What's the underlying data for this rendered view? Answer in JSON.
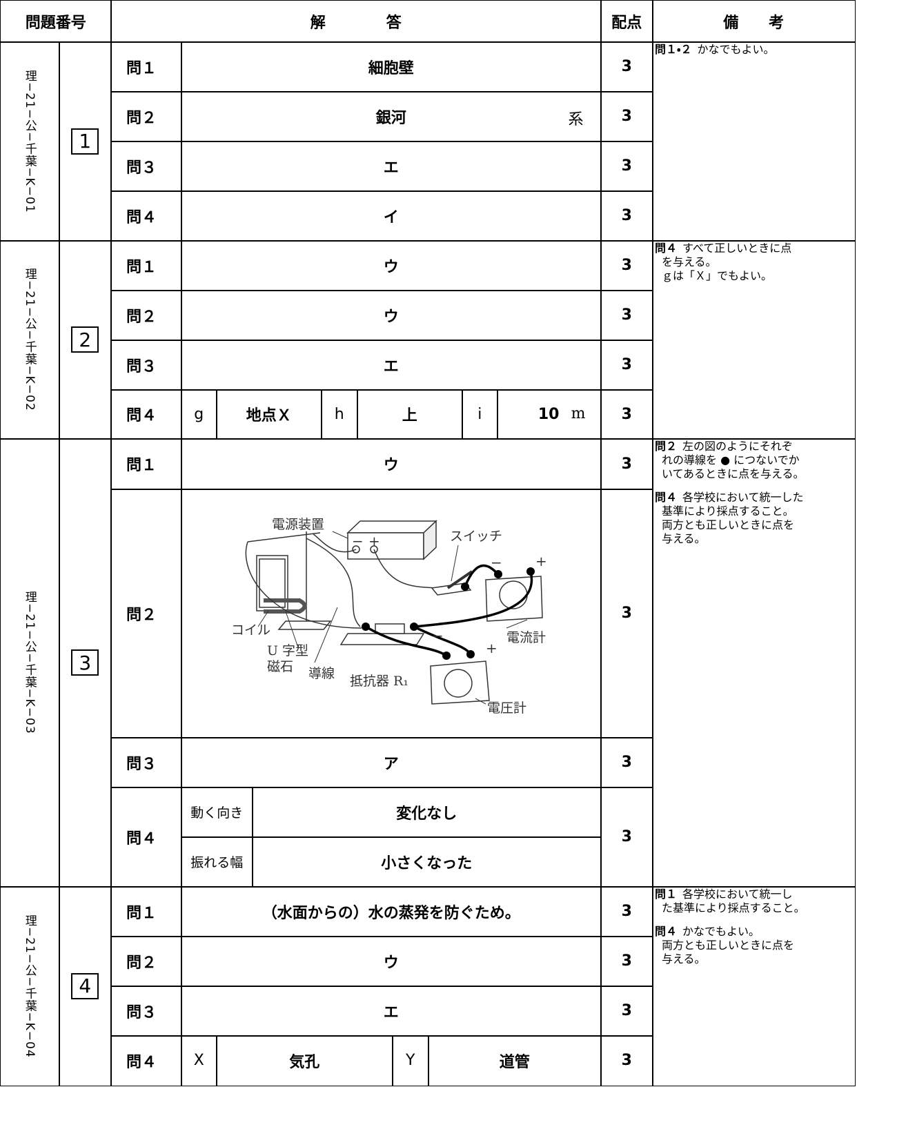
{
  "header": {
    "number": "問題番号",
    "answer": "解　　　　答",
    "points": "配点",
    "remarks": "備　　考"
  },
  "sections": [
    {
      "code": "理−21−公−千葉−K−01",
      "number": "1",
      "questions": [
        {
          "label": "問１",
          "answer": "細胞壁",
          "points": 3
        },
        {
          "label": "問２",
          "answer": "銀河",
          "suffix": "系",
          "points": 3
        },
        {
          "label": "問３",
          "answer": "エ",
          "points": 3
        },
        {
          "label": "問４",
          "answer": "イ",
          "points": 3
        }
      ],
      "remarks": [
        {
          "head": "問１・２",
          "lines": [
            "かなでもよい。"
          ]
        }
      ]
    },
    {
      "code": "理−21−公−千葉−K−02",
      "number": "2",
      "questions": [
        {
          "label": "問１",
          "answer": "ウ",
          "points": 3
        },
        {
          "label": "問２",
          "answer": "ウ",
          "points": 3
        },
        {
          "label": "問３",
          "answer": "エ",
          "points": 3
        },
        {
          "label": "問４",
          "parts": [
            "g",
            "地点Ｘ",
            "h",
            "上",
            "i",
            "10"
          ],
          "unit": "m",
          "points": 3
        }
      ],
      "remarks": [
        {
          "head": "問４",
          "lines": [
            "すべて正しいときに点",
            "を与える。",
            "ｇは「Ｘ」でもよい。"
          ]
        }
      ]
    },
    {
      "code": "理−21−公−千葉−K−03",
      "number": "3",
      "questions": [
        {
          "label": "問１",
          "answer": "ウ",
          "points": 3
        },
        {
          "label": "問２",
          "figure": {
            "labels": [
              "電源装置",
              "スイッチ",
              "コイル",
              "U 字型",
              "磁石",
              "導線",
              "抵抗器 R₁",
              "電流計",
              "電圧計"
            ],
            "signs": [
              "−",
              "+",
              "−",
              "+",
              "−",
              "+"
            ]
          },
          "points": 3
        },
        {
          "label": "問３",
          "answer": "ア",
          "points": 3
        },
        {
          "label": "問４",
          "rows": [
            {
              "label": "動く向き",
              "answer": "変化なし"
            },
            {
              "label": "振れる幅",
              "answer": "小さくなった"
            }
          ],
          "points": 3
        }
      ],
      "remarks": [
        {
          "head": "問２",
          "lines": [
            "左の図のようにそれぞ",
            "れの導線を ● につないでか",
            "いてあるときに点を与える。"
          ]
        },
        {
          "head": "問４",
          "lines": [
            "各学校において統一した",
            "基準により採点すること。",
            "両方とも正しいときに点を",
            "与える。"
          ]
        }
      ]
    },
    {
      "code": "理−21−公−千葉−K−04",
      "number": "4",
      "questions": [
        {
          "label": "問１",
          "answer": "（水面からの）水の蒸発を防ぐため。",
          "points": 3
        },
        {
          "label": "問２",
          "answer": "ウ",
          "points": 3
        },
        {
          "label": "問３",
          "answer": "エ",
          "points": 3
        },
        {
          "label": "問４",
          "parts": [
            "X",
            "気孔",
            "Y",
            "道管"
          ],
          "points": 3
        }
      ],
      "remarks": [
        {
          "head": "問１",
          "lines": [
            "各学校において統一し",
            "た基準により採点すること。"
          ]
        },
        {
          "head": "問４",
          "lines": [
            "かなでもよい。",
            "両方とも正しいときに点を",
            "与える。"
          ]
        }
      ]
    }
  ]
}
